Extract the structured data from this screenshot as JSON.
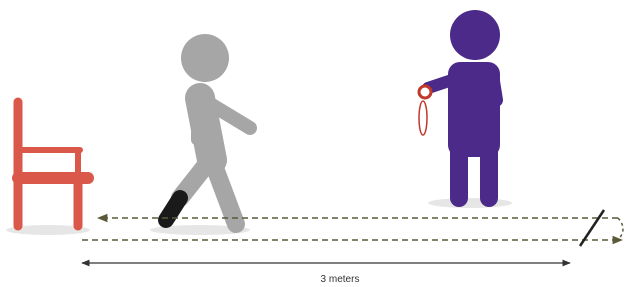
{
  "measurement": {
    "label": "3 meters"
  }
}
